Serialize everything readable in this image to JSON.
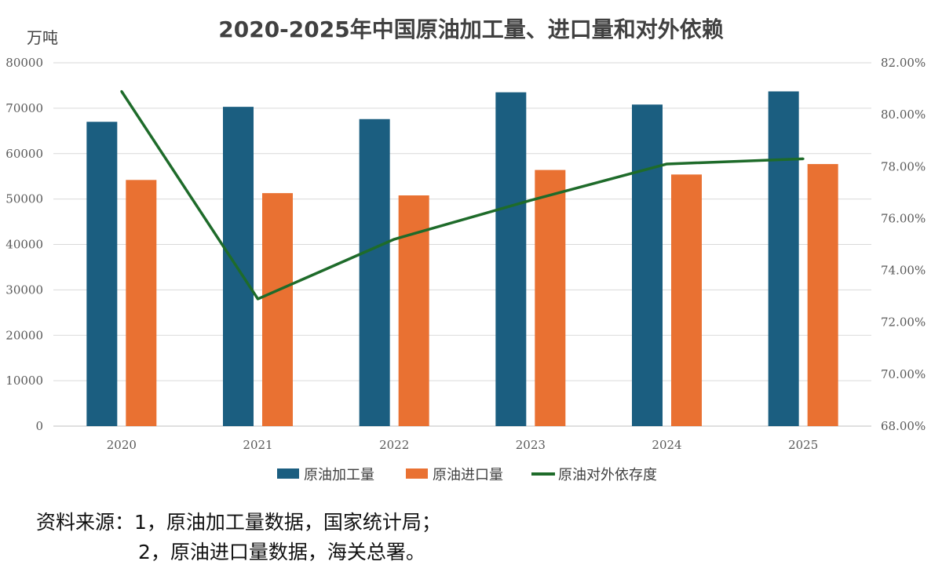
{
  "chart_data": {
    "type": "bar",
    "title": "2020-2025年中国原油加工量、进口量和对外依赖",
    "ylabel": "万吨",
    "categories": [
      "2020",
      "2021",
      "2022",
      "2023",
      "2024",
      "2025"
    ],
    "ylim": [
      0,
      80000
    ],
    "yticks": [
      "0",
      "10000",
      "20000",
      "30000",
      "40000",
      "50000",
      "60000",
      "70000",
      "80000"
    ],
    "y2lim": [
      68,
      82
    ],
    "y2ticks": [
      "68.00%",
      "70.00%",
      "72.00%",
      "74.00%",
      "76.00%",
      "78.00%",
      "80.00%",
      "82.00%"
    ],
    "series": [
      {
        "name": "原油加工量",
        "type": "bar",
        "axis": "left",
        "color": "#1b5e80",
        "values": [
          67000,
          70300,
          67600,
          73500,
          70800,
          73700
        ]
      },
      {
        "name": "原油进口量",
        "type": "bar",
        "axis": "left",
        "color": "#e97132",
        "values": [
          54200,
          51300,
          50800,
          56400,
          55400,
          57700
        ]
      },
      {
        "name": "原油对外依存度",
        "type": "line",
        "axis": "right",
        "color": "#1e6b2a",
        "values": [
          80.9,
          72.9,
          75.2,
          76.7,
          78.1,
          78.3
        ]
      }
    ],
    "legend_position": "bottom"
  },
  "source": {
    "line1": "资料来源：1，原油加工量数据，国家统计局；",
    "line2": "2，原油进口量数据，海关总署。"
  }
}
